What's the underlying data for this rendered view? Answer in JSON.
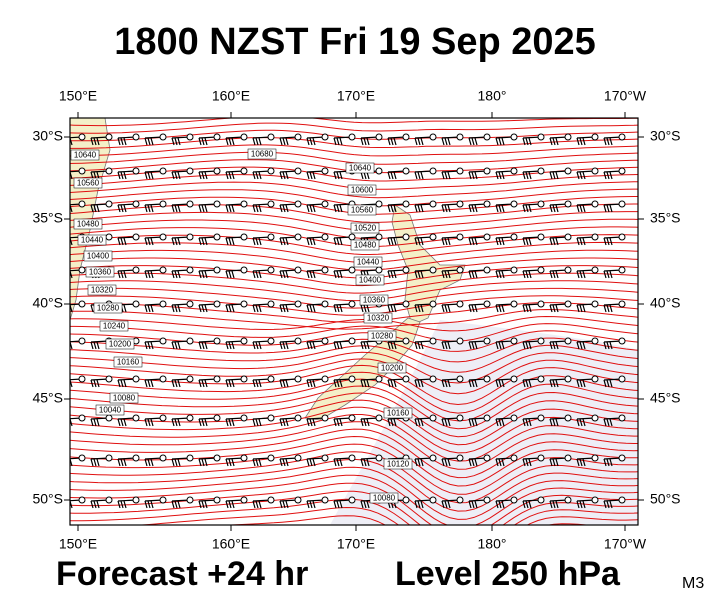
{
  "header": {
    "title": "1800 NZST Fri 19 Sep 2025"
  },
  "map": {
    "lon_labels": [
      "150°E",
      "160°E",
      "170°E",
      "180°",
      "170°W"
    ],
    "lat_labels": [
      "30°S",
      "35°S",
      "40°S",
      "45°S",
      "50°S"
    ],
    "contour_labels": [
      "10680",
      "10640",
      "10600",
      "10560",
      "10520",
      "10480",
      "10440",
      "10400",
      "10360",
      "10320",
      "10280",
      "10200",
      "10160",
      "10120",
      "10080",
      "10640",
      "10560",
      "10480",
      "10440",
      "10400",
      "10360",
      "10320",
      "10280",
      "10240",
      "10200",
      "10160",
      "10080",
      "10040"
    ]
  },
  "footer": {
    "forecast": "Forecast +24 hr",
    "level": "Level 250 hPa",
    "code": "M3"
  }
}
